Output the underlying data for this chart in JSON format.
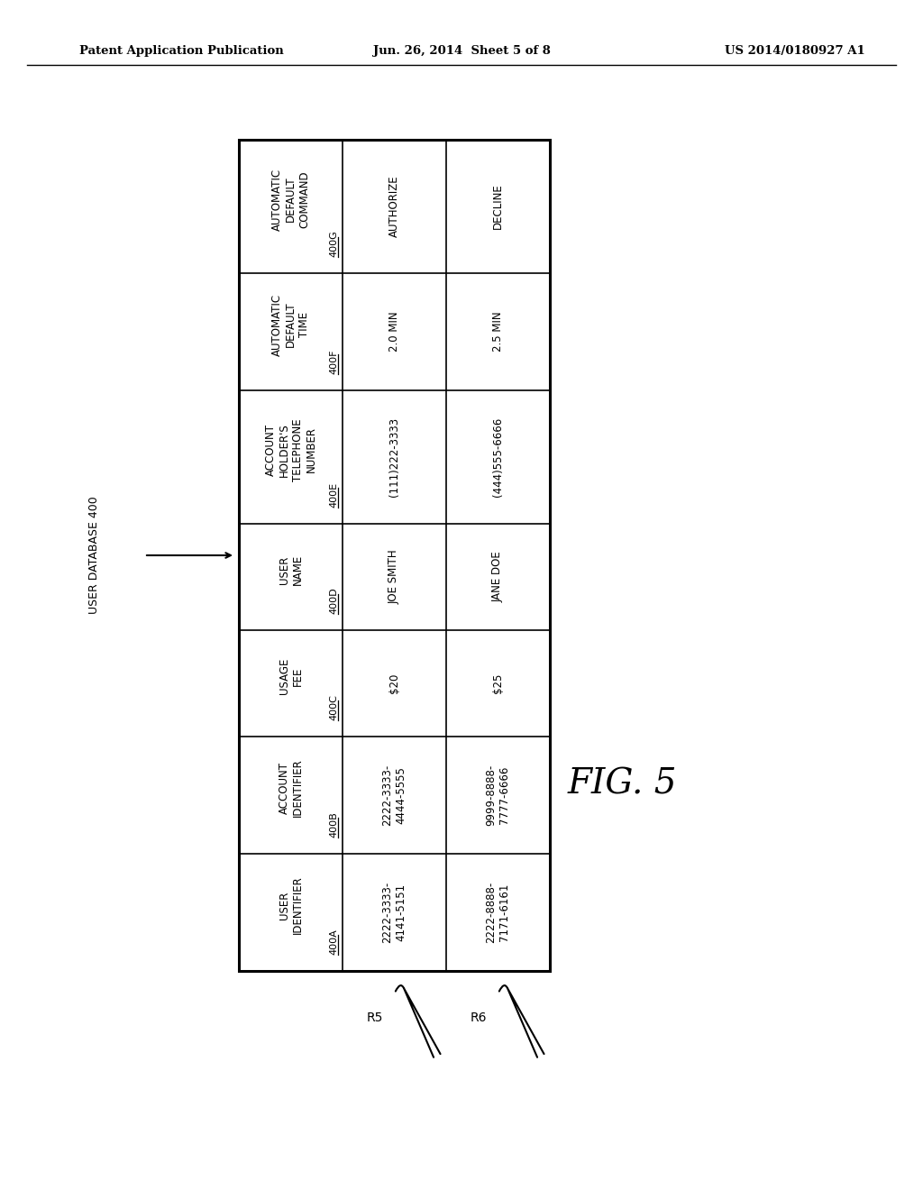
{
  "title_left": "Patent Application Publication",
  "title_center": "Jun. 26, 2014  Sheet 5 of 8",
  "title_right": "US 2014/0180927 A1",
  "fig_label": "FIG. 5",
  "db_label": "USER DATABASE 400",
  "rows": [
    {
      "header": "AUTOMATIC\nDEFAULT\nCOMMAND",
      "ref": "400G",
      "data": [
        "AUTHORIZE",
        "DECLINE"
      ]
    },
    {
      "header": "AUTOMATIC\nDEFAULT\nTIME",
      "ref": "400F",
      "data": [
        "2.0 MIN",
        "2.5 MIN"
      ]
    },
    {
      "header": "ACCOUNT\nHOLDER'S\nTELEPHONE\nNUMBER",
      "ref": "400E",
      "data": [
        "(111)222-3333",
        "(444)555-6666"
      ]
    },
    {
      "header": "USER\nNAME",
      "ref": "400D",
      "data": [
        "JOE SMITH",
        "JANE DOE"
      ]
    },
    {
      "header": "USAGE\nFEE",
      "ref": "400C",
      "data": [
        "$20",
        "$25"
      ]
    },
    {
      "header": "ACCOUNT\nIDENTIFIER",
      "ref": "400B",
      "data": [
        "2222-3333-\n4444-5555",
        "9999-8888-\n7777-6666"
      ]
    },
    {
      "header": "USER\nIDENTIFIER",
      "ref": "400A",
      "data": [
        "2222-3333-\n4141-5151",
        "2222-8888-\n7171-6161"
      ]
    }
  ],
  "row_labels": [
    "R5",
    "R6"
  ],
  "background_color": "#ffffff",
  "text_color": "#000000"
}
